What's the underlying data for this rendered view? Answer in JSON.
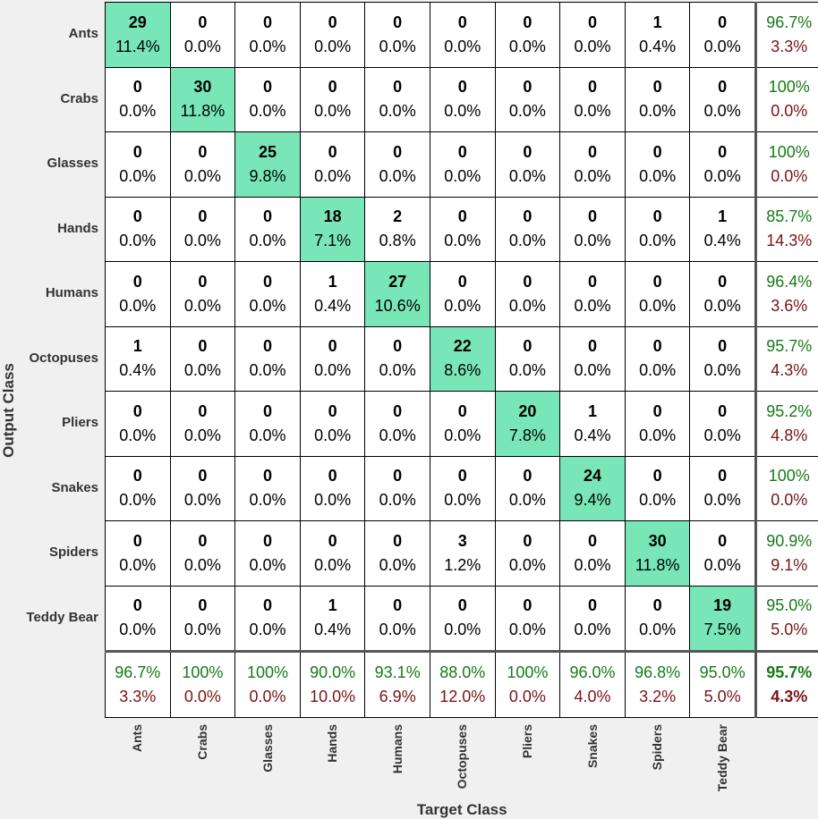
{
  "chart_data": {
    "type": "heatmap",
    "title": "",
    "xlabel": "Target Class",
    "ylabel": "Output Class",
    "classes": [
      "Ants",
      "Crabs",
      "Glasses",
      "Hands",
      "Humans",
      "Octopuses",
      "Pliers",
      "Snakes",
      "Spiders",
      "Teddy Bear"
    ],
    "counts": [
      [
        29,
        0,
        0,
        0,
        0,
        0,
        0,
        0,
        1,
        0
      ],
      [
        0,
        30,
        0,
        0,
        0,
        0,
        0,
        0,
        0,
        0
      ],
      [
        0,
        0,
        25,
        0,
        0,
        0,
        0,
        0,
        0,
        0
      ],
      [
        0,
        0,
        0,
        18,
        2,
        0,
        0,
        0,
        0,
        1
      ],
      [
        0,
        0,
        0,
        1,
        27,
        0,
        0,
        0,
        0,
        0
      ],
      [
        1,
        0,
        0,
        0,
        0,
        22,
        0,
        0,
        0,
        0
      ],
      [
        0,
        0,
        0,
        0,
        0,
        0,
        20,
        1,
        0,
        0
      ],
      [
        0,
        0,
        0,
        0,
        0,
        0,
        0,
        24,
        0,
        0
      ],
      [
        0,
        0,
        0,
        0,
        0,
        3,
        0,
        0,
        30,
        0
      ],
      [
        0,
        0,
        0,
        1,
        0,
        0,
        0,
        0,
        0,
        19
      ]
    ],
    "percents": [
      [
        "11.4%",
        "0.0%",
        "0.0%",
        "0.0%",
        "0.0%",
        "0.0%",
        "0.0%",
        "0.0%",
        "0.4%",
        "0.0%"
      ],
      [
        "0.0%",
        "11.8%",
        "0.0%",
        "0.0%",
        "0.0%",
        "0.0%",
        "0.0%",
        "0.0%",
        "0.0%",
        "0.0%"
      ],
      [
        "0.0%",
        "0.0%",
        "9.8%",
        "0.0%",
        "0.0%",
        "0.0%",
        "0.0%",
        "0.0%",
        "0.0%",
        "0.0%"
      ],
      [
        "0.0%",
        "0.0%",
        "0.0%",
        "7.1%",
        "0.8%",
        "0.0%",
        "0.0%",
        "0.0%",
        "0.0%",
        "0.4%"
      ],
      [
        "0.0%",
        "0.0%",
        "0.0%",
        "0.4%",
        "10.6%",
        "0.0%",
        "0.0%",
        "0.0%",
        "0.0%",
        "0.0%"
      ],
      [
        "0.4%",
        "0.0%",
        "0.0%",
        "0.0%",
        "0.0%",
        "8.6%",
        "0.0%",
        "0.0%",
        "0.0%",
        "0.0%"
      ],
      [
        "0.0%",
        "0.0%",
        "0.0%",
        "0.0%",
        "0.0%",
        "0.0%",
        "7.8%",
        "0.4%",
        "0.0%",
        "0.0%"
      ],
      [
        "0.0%",
        "0.0%",
        "0.0%",
        "0.0%",
        "0.0%",
        "0.0%",
        "0.0%",
        "9.4%",
        "0.0%",
        "0.0%"
      ],
      [
        "0.0%",
        "0.0%",
        "0.0%",
        "0.0%",
        "0.0%",
        "1.2%",
        "0.0%",
        "0.0%",
        "11.8%",
        "0.0%"
      ],
      [
        "0.0%",
        "0.0%",
        "0.0%",
        "0.4%",
        "0.0%",
        "0.0%",
        "0.0%",
        "0.0%",
        "0.0%",
        "7.5%"
      ]
    ],
    "row_summary": [
      [
        "96.7%",
        "3.3%"
      ],
      [
        "100%",
        "0.0%"
      ],
      [
        "100%",
        "0.0%"
      ],
      [
        "85.7%",
        "14.3%"
      ],
      [
        "96.4%",
        "3.6%"
      ],
      [
        "95.7%",
        "4.3%"
      ],
      [
        "95.2%",
        "4.8%"
      ],
      [
        "100%",
        "0.0%"
      ],
      [
        "90.9%",
        "9.1%"
      ],
      [
        "95.0%",
        "5.0%"
      ]
    ],
    "col_summary": [
      [
        "96.7%",
        "3.3%"
      ],
      [
        "100%",
        "0.0%"
      ],
      [
        "100%",
        "0.0%"
      ],
      [
        "90.0%",
        "10.0%"
      ],
      [
        "93.1%",
        "6.9%"
      ],
      [
        "88.0%",
        "12.0%"
      ],
      [
        "100%",
        "0.0%"
      ],
      [
        "96.0%",
        "4.0%"
      ],
      [
        "96.8%",
        "3.2%"
      ],
      [
        "95.0%",
        "5.0%"
      ]
    ],
    "overall": [
      "95.7%",
      "4.3%"
    ]
  },
  "colors": {
    "diagonal": "#78e6b7",
    "offdiagonal": "#ffffff",
    "correct_text": "#177a17",
    "error_text": "#7a1414",
    "separator": "#555555"
  }
}
